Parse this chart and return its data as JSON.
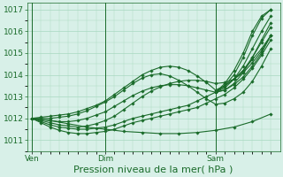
{
  "title": "",
  "xlabel": "Pression niveau de la mer( hPa )",
  "bg_color": "#d8f0e8",
  "grid_color": "#a8d8c0",
  "line_color": "#1a6b2a",
  "ylim": [
    1010.5,
    1017.3
  ],
  "xtick_labels": [
    "Ven",
    "Dim",
    "Sam"
  ],
  "xtick_positions": [
    0,
    8,
    20
  ],
  "ytick_values": [
    1011,
    1012,
    1013,
    1014,
    1015,
    1016,
    1017
  ],
  "vlines": [
    0,
    8,
    20
  ],
  "lines": [
    {
      "x": [
        0,
        1,
        2,
        3,
        4,
        5,
        6,
        7,
        8,
        9,
        10,
        11,
        12,
        13,
        14,
        15,
        16,
        17,
        18,
        19,
        20,
        21,
        22,
        23,
        24,
        25,
        26
      ],
      "y": [
        1012.0,
        1011.85,
        1011.7,
        1011.6,
        1011.55,
        1011.5,
        1011.5,
        1011.55,
        1011.6,
        1011.7,
        1011.85,
        1012.0,
        1012.1,
        1012.2,
        1012.3,
        1012.4,
        1012.5,
        1012.6,
        1012.8,
        1013.0,
        1013.2,
        1013.5,
        1013.8,
        1014.2,
        1014.7,
        1015.2,
        1015.8
      ]
    },
    {
      "x": [
        0,
        1,
        2,
        3,
        4,
        5,
        6,
        7,
        8,
        9,
        10,
        11,
        12,
        13,
        14,
        15,
        16,
        17,
        18,
        19,
        20,
        21,
        22,
        23,
        24,
        25,
        26
      ],
      "y": [
        1012.0,
        1011.8,
        1011.6,
        1011.45,
        1011.35,
        1011.3,
        1011.3,
        1011.35,
        1011.4,
        1011.5,
        1011.65,
        1011.8,
        1011.9,
        1012.0,
        1012.1,
        1012.2,
        1012.3,
        1012.4,
        1012.5,
        1012.7,
        1012.9,
        1013.1,
        1013.4,
        1013.8,
        1014.3,
        1014.9,
        1015.6
      ]
    },
    {
      "x": [
        0,
        1,
        2,
        3,
        4,
        5,
        6,
        7,
        8,
        9,
        10,
        11,
        12,
        13,
        14,
        15,
        16,
        17,
        18,
        19,
        20,
        21,
        22,
        23,
        24,
        25,
        26
      ],
      "y": [
        1012.0,
        1012.05,
        1012.1,
        1012.15,
        1012.2,
        1012.3,
        1012.45,
        1012.6,
        1012.8,
        1013.1,
        1013.4,
        1013.7,
        1014.0,
        1014.2,
        1014.35,
        1014.4,
        1014.35,
        1014.2,
        1013.95,
        1013.65,
        1013.3,
        1013.5,
        1013.8,
        1014.2,
        1014.8,
        1015.5,
        1016.2
      ]
    },
    {
      "x": [
        0,
        1,
        2,
        3,
        4,
        5,
        6,
        7,
        8,
        9,
        10,
        11,
        12,
        13,
        14,
        15,
        16,
        17,
        18,
        19,
        20,
        21,
        22,
        23,
        24,
        25,
        26
      ],
      "y": [
        1012.0,
        1012.0,
        1012.0,
        1012.05,
        1012.1,
        1012.2,
        1012.35,
        1012.55,
        1012.75,
        1013.0,
        1013.3,
        1013.6,
        1013.85,
        1014.0,
        1014.05,
        1013.95,
        1013.75,
        1013.5,
        1013.2,
        1012.9,
        1012.65,
        1012.7,
        1012.9,
        1013.2,
        1013.7,
        1014.4,
        1015.2
      ]
    },
    {
      "x": [
        0,
        1,
        2,
        3,
        4,
        5,
        6,
        7,
        8,
        9,
        10,
        11,
        12,
        13,
        14,
        15,
        16,
        17,
        18,
        19,
        20,
        21,
        22,
        23,
        24,
        25,
        26
      ],
      "y": [
        1012.0,
        1011.95,
        1011.9,
        1011.85,
        1011.85,
        1011.9,
        1012.0,
        1012.15,
        1012.3,
        1012.55,
        1012.8,
        1013.05,
        1013.25,
        1013.4,
        1013.5,
        1013.55,
        1013.55,
        1013.5,
        1013.4,
        1013.3,
        1013.2,
        1013.3,
        1013.55,
        1013.9,
        1014.4,
        1015.0,
        1015.8
      ]
    },
    {
      "x": [
        0,
        1,
        2,
        3,
        4,
        5,
        6,
        7,
        8,
        9,
        10,
        11,
        12,
        13,
        14,
        15,
        16,
        17,
        18,
        19,
        20,
        21,
        22,
        23,
        24,
        25,
        26
      ],
      "y": [
        1012.0,
        1011.9,
        1011.8,
        1011.7,
        1011.65,
        1011.6,
        1011.65,
        1011.75,
        1011.9,
        1012.1,
        1012.4,
        1012.7,
        1013.0,
        1013.25,
        1013.45,
        1013.6,
        1013.7,
        1013.75,
        1013.75,
        1013.7,
        1013.6,
        1013.65,
        1013.8,
        1014.1,
        1014.55,
        1015.1,
        1015.8
      ]
    },
    {
      "x": [
        0,
        2,
        4,
        6,
        8,
        10,
        12,
        14,
        16,
        18,
        20,
        22,
        24,
        26
      ],
      "y": [
        1012.0,
        1011.9,
        1011.75,
        1011.6,
        1011.5,
        1011.4,
        1011.35,
        1011.3,
        1011.3,
        1011.35,
        1011.45,
        1011.6,
        1011.85,
        1012.2
      ]
    },
    {
      "x": [
        20,
        21,
        22,
        23,
        24,
        25,
        26
      ],
      "y": [
        1013.2,
        1013.5,
        1014.0,
        1014.8,
        1015.8,
        1016.6,
        1017.0
      ]
    },
    {
      "x": [
        20,
        21,
        22,
        23,
        24,
        25,
        26
      ],
      "y": [
        1013.2,
        1013.6,
        1014.2,
        1015.0,
        1016.0,
        1016.7,
        1017.0
      ]
    },
    {
      "x": [
        20,
        21,
        22,
        23,
        24,
        25,
        26
      ],
      "y": [
        1013.2,
        1013.4,
        1013.8,
        1014.4,
        1015.2,
        1016.0,
        1016.7
      ]
    },
    {
      "x": [
        20,
        21,
        22,
        23,
        24,
        25,
        26
      ],
      "y": [
        1013.2,
        1013.3,
        1013.6,
        1014.1,
        1014.8,
        1015.6,
        1016.4
      ]
    }
  ],
  "xlabel_fontsize": 8,
  "tick_fontsize": 6.5,
  "total_points": 27,
  "xlim": [
    -0.5,
    27
  ]
}
